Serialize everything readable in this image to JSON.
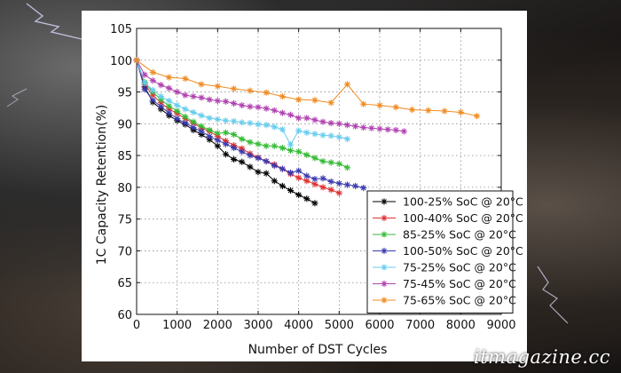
{
  "watermark": "itmagazine.cc",
  "chart_data": {
    "type": "line",
    "title": "",
    "xlabel": "Number of DST Cycles",
    "ylabel": "1C Capacity Retention(%)",
    "xlim": [
      0,
      9000
    ],
    "ylim": [
      60,
      105
    ],
    "xticks": [
      0,
      1000,
      2000,
      3000,
      4000,
      5000,
      6000,
      7000,
      8000,
      9000
    ],
    "yticks": [
      60,
      65,
      70,
      75,
      80,
      85,
      90,
      95,
      100,
      105
    ],
    "grid": true,
    "legend_position": "lower-right",
    "series": [
      {
        "name": "100-25% SoC @ 20°C",
        "color": "#000000",
        "marker": "star",
        "x": [
          0,
          200,
          400,
          600,
          800,
          1000,
          1200,
          1400,
          1600,
          1800,
          2000,
          2200,
          2400,
          2600,
          2800,
          3000,
          3200,
          3400,
          3600,
          3800,
          4000,
          4200,
          4400
        ],
        "y": [
          100,
          95.8,
          93.4,
          92.3,
          91.3,
          90.5,
          89.9,
          89.0,
          88.3,
          87.5,
          86.5,
          85.2,
          84.4,
          84.0,
          83.2,
          82.4,
          82.2,
          81.0,
          80.2,
          79.5,
          78.8,
          78.2,
          77.5
        ]
      },
      {
        "name": "100-40% SoC @ 20°C",
        "color": "#e03030",
        "marker": "star",
        "x": [
          0,
          200,
          400,
          600,
          800,
          1000,
          1200,
          1400,
          1600,
          1800,
          2000,
          2200,
          2400,
          2600,
          2800,
          3000,
          3200,
          3400,
          3600,
          3800,
          4000,
          4200,
          4400,
          4600,
          4800,
          5000
        ],
        "y": [
          100,
          96.2,
          94.5,
          93.3,
          92.3,
          91.6,
          90.8,
          90.1,
          89.3,
          88.8,
          88.0,
          87.3,
          86.6,
          86.1,
          85.3,
          84.7,
          84.1,
          83.6,
          82.9,
          82.1,
          81.5,
          81.0,
          80.5,
          80.0,
          79.6,
          79.1
        ]
      },
      {
        "name": "85-25% SoC @ 20°C",
        "color": "#33bb33",
        "marker": "star",
        "x": [
          0,
          200,
          400,
          600,
          800,
          1000,
          1200,
          1400,
          1600,
          1800,
          2000,
          2200,
          2400,
          2600,
          2800,
          3000,
          3200,
          3400,
          3600,
          3800,
          4000,
          4200,
          4400,
          4600,
          4800,
          5000,
          5200
        ],
        "y": [
          100,
          96.5,
          95.0,
          93.8,
          92.8,
          92.0,
          91.1,
          90.3,
          89.6,
          89.0,
          88.5,
          88.6,
          88.3,
          87.6,
          87.1,
          86.8,
          86.5,
          86.5,
          86.2,
          85.8,
          85.6,
          85.1,
          84.6,
          84.1,
          83.9,
          83.7,
          83.1
        ]
      },
      {
        "name": "100-50% SoC @ 20°C",
        "color": "#3a3ab0",
        "marker": "star",
        "x": [
          0,
          200,
          400,
          600,
          800,
          1000,
          1200,
          1400,
          1600,
          1800,
          2000,
          2200,
          2400,
          2600,
          2800,
          3000,
          3200,
          3400,
          3600,
          3800,
          4000,
          4200,
          4400,
          4600,
          4800,
          5000,
          5200,
          5400,
          5600
        ],
        "y": [
          100,
          95.4,
          93.7,
          92.7,
          91.7,
          90.8,
          90.1,
          89.4,
          88.8,
          88.0,
          87.4,
          86.8,
          86.2,
          85.6,
          85.0,
          84.6,
          84.1,
          83.4,
          82.9,
          82.3,
          82.6,
          81.8,
          81.3,
          81.4,
          80.9,
          80.6,
          80.4,
          80.2,
          79.9
        ]
      },
      {
        "name": "75-25% SoC @ 20°C",
        "color": "#66ccee",
        "marker": "star",
        "x": [
          0,
          200,
          400,
          600,
          800,
          1000,
          1200,
          1400,
          1600,
          1800,
          2000,
          2200,
          2400,
          2600,
          2800,
          3000,
          3200,
          3400,
          3600,
          3800,
          4000,
          4200,
          4400,
          4600,
          4800,
          5000,
          5200
        ],
        "y": [
          100,
          96.4,
          95.3,
          94.3,
          93.6,
          92.9,
          92.3,
          91.8,
          91.3,
          90.9,
          90.7,
          90.5,
          90.4,
          90.2,
          90.1,
          89.9,
          89.8,
          89.5,
          89.1,
          86.7,
          88.9,
          88.6,
          88.4,
          88.2,
          88.1,
          87.9,
          87.6
        ]
      },
      {
        "name": "75-45% SoC @ 20°C",
        "color": "#b040b0",
        "marker": "star",
        "x": [
          0,
          200,
          400,
          600,
          800,
          1000,
          1200,
          1400,
          1600,
          1800,
          2000,
          2200,
          2400,
          2600,
          2800,
          3000,
          3200,
          3400,
          3600,
          3800,
          4000,
          4200,
          4400,
          4600,
          4800,
          5000,
          5200,
          5400,
          5600,
          5800,
          6000,
          6200,
          6400,
          6600
        ],
        "y": [
          100,
          97.7,
          96.8,
          96.1,
          95.6,
          95.0,
          94.5,
          94.3,
          94.1,
          93.8,
          93.6,
          93.5,
          93.2,
          92.9,
          92.7,
          92.6,
          92.4,
          92.1,
          91.7,
          91.4,
          90.9,
          90.9,
          90.6,
          90.3,
          90.1,
          90.0,
          89.8,
          89.6,
          89.4,
          89.3,
          89.2,
          89.1,
          89.0,
          88.8
        ]
      },
      {
        "name": "75-65% SoC @ 20°C",
        "color": "#f08a20",
        "marker": "star",
        "x": [
          0,
          400,
          800,
          1200,
          1600,
          2000,
          2400,
          2800,
          3200,
          3600,
          4000,
          4400,
          4800,
          5200,
          5600,
          6000,
          6400,
          6800,
          7200,
          7600,
          8000,
          8400
        ],
        "y": [
          100,
          98.1,
          97.3,
          97.1,
          96.2,
          95.9,
          95.5,
          95.2,
          94.9,
          94.3,
          93.8,
          93.7,
          93.3,
          96.2,
          93.1,
          92.9,
          92.6,
          92.2,
          92.1,
          92.0,
          91.8,
          91.2
        ]
      }
    ]
  }
}
